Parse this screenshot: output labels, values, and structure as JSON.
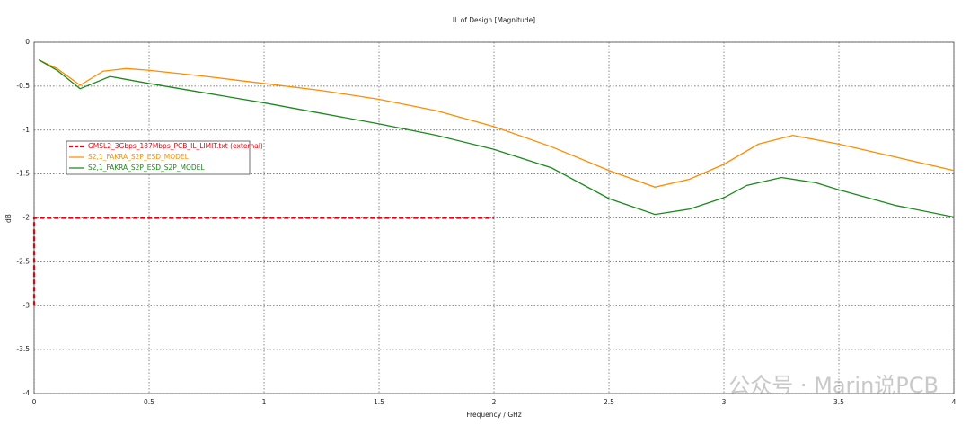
{
  "chart_data": {
    "type": "line",
    "title": "IL of Design [Magnitude]",
    "x_label": "Frequency / GHz",
    "y_label": "dB",
    "xlim": [
      0,
      4
    ],
    "xticks": [
      0,
      0.5,
      1,
      1.5,
      2,
      2.5,
      3,
      3.5,
      4
    ],
    "ylim": [
      -4,
      0
    ],
    "yticks": [
      0,
      -0.5,
      -1,
      -1.5,
      -2,
      -2.5,
      -3,
      -3.5,
      -4
    ],
    "grid": true,
    "legend": "left",
    "series": [
      {
        "name": "GMSL2_3Gbps_187Mbps_PCB_IL_LIMIT.txt (external)",
        "color": "#e8000b",
        "line_style": "dashed",
        "x": [
          0,
          0,
          2
        ],
        "values": [
          -3,
          -2,
          -2
        ]
      },
      {
        "name": "S2,1_FAKRA_S2P_ESD_MODEL",
        "color": "#ff8c00",
        "line_style": "solid",
        "x": [
          0.02,
          0.1,
          0.2,
          0.3,
          0.4,
          0.5,
          0.75,
          1,
          1.25,
          1.5,
          1.75,
          2,
          2.25,
          2.5,
          2.7,
          2.85,
          3,
          3.15,
          3.3,
          3.5,
          3.75,
          4
        ],
        "values": [
          -0.2,
          -0.3,
          -0.49,
          -0.33,
          -0.3,
          -0.32,
          -0.39,
          -0.47,
          -0.55,
          -0.65,
          -0.78,
          -0.96,
          -1.19,
          -1.46,
          -1.65,
          -1.56,
          -1.39,
          -1.16,
          -1.06,
          -1.16,
          -1.31,
          -1.46
        ]
      },
      {
        "name": "S2,1_FAKRA_S2P_ESD_S2P_MODEL",
        "color": "#1a8a1a",
        "line_style": "solid",
        "x": [
          0.02,
          0.1,
          0.2,
          0.33,
          0.5,
          0.75,
          1,
          1.25,
          1.5,
          1.75,
          2,
          2.25,
          2.5,
          2.7,
          2.85,
          3,
          3.1,
          3.25,
          3.4,
          3.5,
          3.75,
          4
        ],
        "values": [
          -0.2,
          -0.32,
          -0.53,
          -0.39,
          -0.47,
          -0.58,
          -0.69,
          -0.81,
          -0.93,
          -1.06,
          -1.22,
          -1.43,
          -1.78,
          -1.96,
          -1.9,
          -1.77,
          -1.63,
          -1.54,
          -1.6,
          -1.68,
          -1.86,
          -1.99
        ]
      }
    ]
  },
  "watermark": "公众号 · Marin说PCB"
}
